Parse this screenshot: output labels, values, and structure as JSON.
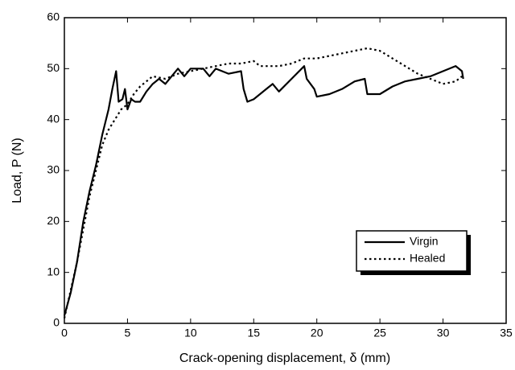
{
  "chart_data": {
    "type": "line",
    "xlabel": "Crack-opening displacement, δ (mm)",
    "ylabel": "Load, P (N)",
    "xlim": [
      0,
      35
    ],
    "xticks": [
      0,
      5,
      10,
      15,
      20,
      25,
      30,
      35
    ],
    "ylim": [
      0,
      60
    ],
    "yticks": [
      0,
      10,
      20,
      30,
      40,
      50,
      60
    ],
    "legend": "lower right",
    "series": [
      {
        "name": "Virgin",
        "color": "#000000",
        "dash": "solid",
        "x": [
          0,
          0.5,
          1,
          1.5,
          2,
          2.5,
          3,
          3.5,
          3.8,
          4.1,
          4.3,
          4.6,
          4.8,
          5,
          5.3,
          5.6,
          6,
          6.5,
          7,
          7.5,
          8,
          8.5,
          9,
          9.5,
          10,
          11,
          11.5,
          12,
          13,
          14,
          14.2,
          14.5,
          15,
          16,
          16.5,
          17,
          18,
          19,
          19.2,
          19.8,
          20,
          21,
          22,
          23,
          23.8,
          24,
          25,
          26,
          27,
          28,
          29,
          30,
          31,
          31.5,
          31.6
        ],
        "values": [
          1.5,
          6,
          12,
          20,
          26,
          31,
          37,
          42,
          46,
          49.5,
          43.5,
          44,
          46,
          42,
          44,
          43.5,
          43.5,
          45.5,
          47,
          48,
          47,
          48.5,
          50,
          48.5,
          50,
          50,
          48.5,
          50,
          49,
          49.5,
          46,
          43.5,
          44,
          46,
          47,
          45.5,
          48,
          50.5,
          48,
          46,
          44.5,
          45,
          46,
          47.5,
          48,
          45,
          45,
          46.5,
          47.5,
          48,
          48.5,
          49.5,
          50.5,
          49.5,
          48
        ]
      },
      {
        "name": "Healed",
        "color": "#000000",
        "dash": "dotted",
        "x": [
          0,
          1,
          2,
          3,
          3.5,
          4,
          4.5,
          5,
          5.5,
          6,
          7,
          8,
          9,
          10,
          11,
          12,
          13,
          14,
          15,
          15.5,
          17,
          18,
          19,
          20,
          21,
          22,
          23,
          24,
          25,
          26,
          27,
          28,
          29,
          30,
          31,
          31.5
        ],
        "values": [
          1,
          12,
          25,
          35,
          38,
          40,
          42,
          43,
          45,
          46.5,
          48.5,
          48,
          49,
          49.5,
          50,
          50.5,
          51,
          51,
          51.5,
          50.5,
          50.5,
          51,
          52,
          52,
          52.5,
          53,
          53.5,
          54,
          53.5,
          52,
          50.5,
          49,
          48,
          47,
          47.5,
          48.5
        ]
      }
    ]
  }
}
